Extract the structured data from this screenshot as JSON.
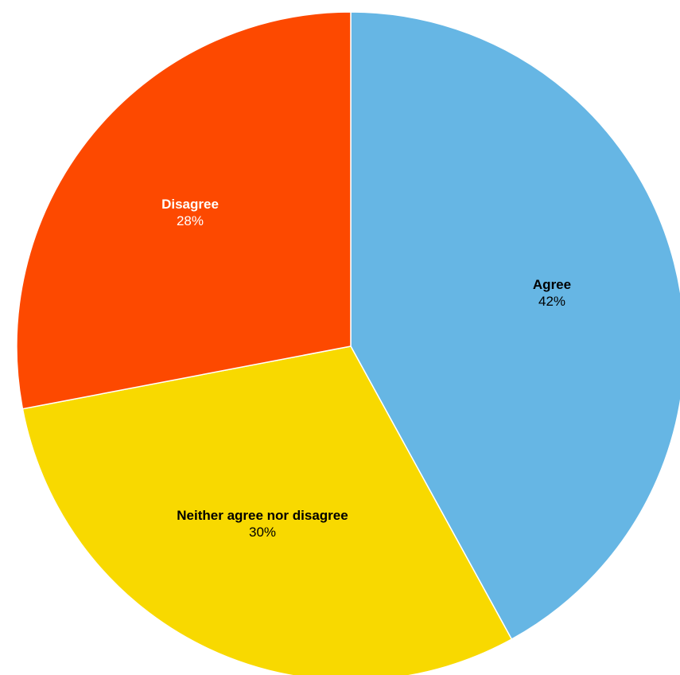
{
  "chart_data": {
    "type": "pie",
    "slices": [
      {
        "label": "Agree",
        "value": 42,
        "value_text": "42%",
        "color": "#66b6e4",
        "label_color": "#000000"
      },
      {
        "label": "Neither agree nor disagree",
        "value": 30,
        "value_text": "30%",
        "color": "#f8d900",
        "label_color": "#000000"
      },
      {
        "label": "Disagree",
        "value": 28,
        "value_text": "28%",
        "color": "#fd4900",
        "label_color": "#ffffff"
      }
    ],
    "start_angle": "12 o'clock",
    "direction": "clockwise",
    "slice_border_color": "#ffffff",
    "title": "",
    "legend": "none"
  }
}
